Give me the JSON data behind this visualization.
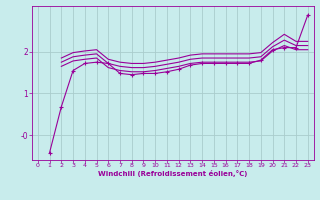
{
  "xlabel": "Windchill (Refroidissement éolien,°C)",
  "bg_color": "#c8ecec",
  "line_color": "#990099",
  "grid_color": "#aacccc",
  "x_ticks": [
    0,
    1,
    2,
    3,
    4,
    5,
    6,
    7,
    8,
    9,
    10,
    11,
    12,
    13,
    14,
    15,
    16,
    17,
    18,
    19,
    20,
    21,
    22,
    23
  ],
  "y_ticks": [
    0,
    1,
    2
  ],
  "ylim": [
    -0.6,
    3.1
  ],
  "xlim": [
    -0.5,
    23.5
  ],
  "line1_x": [
    1,
    2,
    3,
    4,
    5,
    6,
    7,
    8,
    9,
    10,
    11,
    12,
    13,
    14,
    15,
    16,
    17,
    18,
    19,
    20,
    21,
    22,
    23
  ],
  "line1_y": [
    -0.42,
    0.68,
    1.55,
    1.72,
    1.75,
    1.72,
    1.48,
    1.45,
    1.48,
    1.48,
    1.52,
    1.58,
    1.68,
    1.72,
    1.72,
    1.72,
    1.72,
    1.72,
    1.8,
    2.05,
    2.1,
    2.1,
    2.88
  ],
  "line2_x": [
    2,
    3,
    4,
    5,
    6,
    7,
    8,
    9,
    10,
    11,
    12,
    13,
    14,
    15,
    16,
    17,
    18,
    19,
    20,
    21,
    22,
    23
  ],
  "line2_y": [
    1.75,
    1.88,
    1.92,
    1.95,
    1.72,
    1.65,
    1.62,
    1.62,
    1.65,
    1.7,
    1.75,
    1.82,
    1.85,
    1.85,
    1.85,
    1.85,
    1.85,
    1.88,
    2.12,
    2.28,
    2.15,
    2.15
  ],
  "line3_x": [
    2,
    3,
    4,
    5,
    6,
    7,
    8,
    9,
    10,
    11,
    12,
    13,
    14,
    15,
    16,
    17,
    18,
    19,
    20,
    21,
    22,
    23
  ],
  "line3_y": [
    1.85,
    1.98,
    2.02,
    2.05,
    1.82,
    1.75,
    1.72,
    1.72,
    1.75,
    1.8,
    1.85,
    1.92,
    1.95,
    1.95,
    1.95,
    1.95,
    1.95,
    1.98,
    2.22,
    2.42,
    2.25,
    2.25
  ],
  "line4_x": [
    2,
    3,
    4,
    5,
    6,
    7,
    8,
    9,
    10,
    11,
    12,
    13,
    14,
    15,
    16,
    17,
    18,
    19,
    20,
    21,
    22,
    23
  ],
  "line4_y": [
    1.65,
    1.78,
    1.82,
    1.85,
    1.62,
    1.55,
    1.52,
    1.52,
    1.55,
    1.6,
    1.65,
    1.72,
    1.75,
    1.75,
    1.75,
    1.75,
    1.75,
    1.78,
    2.02,
    2.15,
    2.05,
    2.05
  ]
}
